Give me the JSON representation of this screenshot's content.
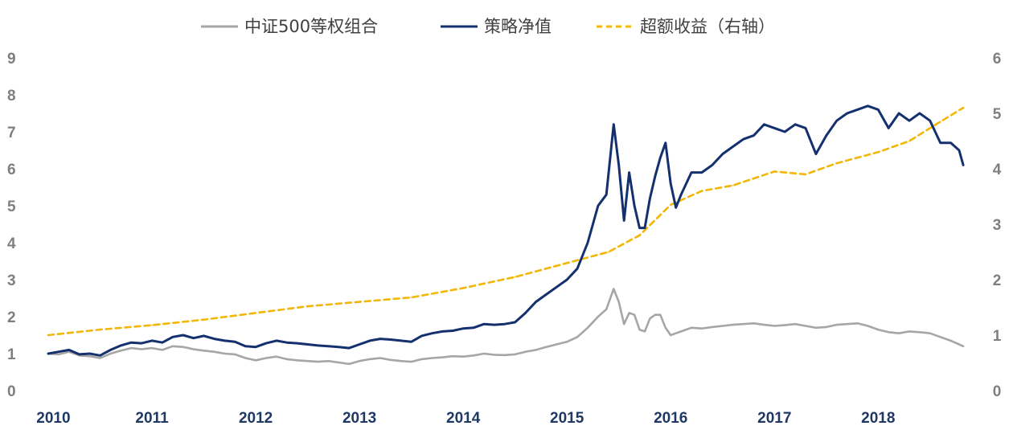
{
  "chart_data": {
    "type": "line",
    "title": "",
    "xlabel": "",
    "ylabel": "",
    "ylabel_right": "",
    "ylim": [
      0,
      9
    ],
    "ylim_right": [
      0,
      6
    ],
    "yticks": [
      "0",
      "1",
      "2",
      "3",
      "4",
      "5",
      "6",
      "7",
      "8",
      "9"
    ],
    "yticks_right": [
      "0",
      "1",
      "2",
      "3",
      "4",
      "5",
      "6"
    ],
    "xlim": [
      2010.0,
      2018.85
    ],
    "xticks": [
      "2010",
      "2011",
      "2012",
      "2013",
      "2014",
      "2015",
      "2016",
      "2017",
      "2018"
    ],
    "grid": false,
    "legend_position": "top-center",
    "series": [
      {
        "name": "中证500等权组合",
        "axis": "left",
        "color": "#a6a6a6",
        "style": "solid",
        "x": [
          2010.0,
          2010.1,
          2010.2,
          2010.3,
          2010.4,
          2010.5,
          2010.6,
          2010.7,
          2010.8,
          2010.9,
          2011.0,
          2011.1,
          2011.2,
          2011.3,
          2011.4,
          2011.5,
          2011.6,
          2011.7,
          2011.8,
          2011.9,
          2012.0,
          2012.1,
          2012.2,
          2012.3,
          2012.4,
          2012.5,
          2012.6,
          2012.7,
          2012.8,
          2012.9,
          2013.0,
          2013.1,
          2013.2,
          2013.3,
          2013.4,
          2013.5,
          2013.6,
          2013.7,
          2013.8,
          2013.9,
          2014.0,
          2014.1,
          2014.2,
          2014.3,
          2014.4,
          2014.5,
          2014.6,
          2014.7,
          2014.8,
          2014.9,
          2015.0,
          2015.1,
          2015.2,
          2015.3,
          2015.38,
          2015.45,
          2015.5,
          2015.55,
          2015.6,
          2015.65,
          2015.7,
          2015.75,
          2015.8,
          2015.85,
          2015.9,
          2015.95,
          2016.0,
          2016.05,
          2016.1,
          2016.2,
          2016.3,
          2016.4,
          2016.5,
          2016.6,
          2016.7,
          2016.8,
          2016.9,
          2017.0,
          2017.1,
          2017.2,
          2017.3,
          2017.4,
          2017.5,
          2017.6,
          2017.7,
          2017.8,
          2017.9,
          2018.0,
          2018.1,
          2018.2,
          2018.3,
          2018.4,
          2018.5,
          2018.6,
          2018.7,
          2018.78,
          2018.82
        ],
        "values": [
          1.0,
          0.98,
          1.05,
          0.95,
          0.93,
          0.88,
          1.0,
          1.08,
          1.15,
          1.12,
          1.15,
          1.1,
          1.2,
          1.18,
          1.12,
          1.08,
          1.05,
          1.0,
          0.98,
          0.88,
          0.82,
          0.88,
          0.92,
          0.85,
          0.82,
          0.8,
          0.78,
          0.8,
          0.76,
          0.72,
          0.8,
          0.85,
          0.88,
          0.83,
          0.8,
          0.78,
          0.85,
          0.88,
          0.9,
          0.93,
          0.92,
          0.95,
          1.0,
          0.97,
          0.96,
          0.98,
          1.05,
          1.1,
          1.18,
          1.25,
          1.32,
          1.45,
          1.7,
          2.0,
          2.2,
          2.75,
          2.4,
          1.8,
          2.1,
          2.05,
          1.65,
          1.6,
          1.95,
          2.05,
          2.05,
          1.7,
          1.5,
          1.55,
          1.6,
          1.7,
          1.68,
          1.72,
          1.75,
          1.78,
          1.8,
          1.82,
          1.78,
          1.75,
          1.77,
          1.8,
          1.75,
          1.7,
          1.72,
          1.78,
          1.8,
          1.82,
          1.75,
          1.65,
          1.58,
          1.55,
          1.6,
          1.58,
          1.55,
          1.45,
          1.35,
          1.25,
          1.2
        ]
      },
      {
        "name": "策略净值",
        "axis": "left",
        "color": "#14306e",
        "style": "solid",
        "x": [
          2010.0,
          2010.1,
          2010.2,
          2010.3,
          2010.4,
          2010.5,
          2010.6,
          2010.7,
          2010.8,
          2010.9,
          2011.0,
          2011.1,
          2011.2,
          2011.3,
          2011.4,
          2011.5,
          2011.6,
          2011.7,
          2011.8,
          2011.9,
          2012.0,
          2012.1,
          2012.2,
          2012.3,
          2012.4,
          2012.5,
          2012.6,
          2012.7,
          2012.8,
          2012.9,
          2013.0,
          2013.1,
          2013.2,
          2013.3,
          2013.4,
          2013.5,
          2013.6,
          2013.7,
          2013.8,
          2013.9,
          2014.0,
          2014.1,
          2014.2,
          2014.3,
          2014.4,
          2014.5,
          2014.6,
          2014.7,
          2014.8,
          2014.9,
          2015.0,
          2015.1,
          2015.2,
          2015.3,
          2015.38,
          2015.45,
          2015.5,
          2015.55,
          2015.6,
          2015.65,
          2015.7,
          2015.75,
          2015.8,
          2015.85,
          2015.9,
          2015.95,
          2016.0,
          2016.05,
          2016.1,
          2016.2,
          2016.3,
          2016.4,
          2016.5,
          2016.6,
          2016.7,
          2016.8,
          2016.9,
          2017.0,
          2017.1,
          2017.2,
          2017.3,
          2017.4,
          2017.5,
          2017.6,
          2017.7,
          2017.8,
          2017.9,
          2018.0,
          2018.1,
          2018.2,
          2018.3,
          2018.4,
          2018.5,
          2018.6,
          2018.7,
          2018.78,
          2018.82
        ],
        "values": [
          1.0,
          1.05,
          1.1,
          0.98,
          1.0,
          0.95,
          1.1,
          1.22,
          1.3,
          1.28,
          1.35,
          1.3,
          1.45,
          1.5,
          1.42,
          1.48,
          1.4,
          1.35,
          1.32,
          1.2,
          1.18,
          1.28,
          1.35,
          1.3,
          1.28,
          1.25,
          1.22,
          1.2,
          1.18,
          1.15,
          1.25,
          1.35,
          1.4,
          1.38,
          1.35,
          1.32,
          1.48,
          1.55,
          1.6,
          1.62,
          1.68,
          1.7,
          1.8,
          1.78,
          1.8,
          1.85,
          2.1,
          2.4,
          2.6,
          2.8,
          3.0,
          3.3,
          4.0,
          5.0,
          5.3,
          7.2,
          6.1,
          4.6,
          5.9,
          5.0,
          4.4,
          4.4,
          5.2,
          5.8,
          6.3,
          6.7,
          5.6,
          4.95,
          5.3,
          5.9,
          5.9,
          6.1,
          6.4,
          6.6,
          6.8,
          6.9,
          7.2,
          7.1,
          7.0,
          7.2,
          7.1,
          6.4,
          6.9,
          7.3,
          7.5,
          7.6,
          7.7,
          7.6,
          7.1,
          7.5,
          7.3,
          7.5,
          7.3,
          6.7,
          6.7,
          6.5,
          6.1
        ]
      },
      {
        "name": "超额收益（右轴）",
        "axis": "right",
        "color": "#f2b705",
        "style": "dashed",
        "x": [
          2010.0,
          2010.5,
          2011.0,
          2011.5,
          2012.0,
          2012.5,
          2013.0,
          2013.5,
          2014.0,
          2014.5,
          2015.0,
          2015.4,
          2015.7,
          2016.0,
          2016.3,
          2016.6,
          2017.0,
          2017.3,
          2017.6,
          2018.0,
          2018.3,
          2018.6,
          2018.82
        ],
        "values": [
          1.0,
          1.1,
          1.18,
          1.28,
          1.4,
          1.52,
          1.6,
          1.68,
          1.85,
          2.05,
          2.3,
          2.5,
          2.8,
          3.35,
          3.6,
          3.7,
          3.95,
          3.9,
          4.1,
          4.3,
          4.5,
          4.85,
          5.1
        ]
      }
    ]
  }
}
